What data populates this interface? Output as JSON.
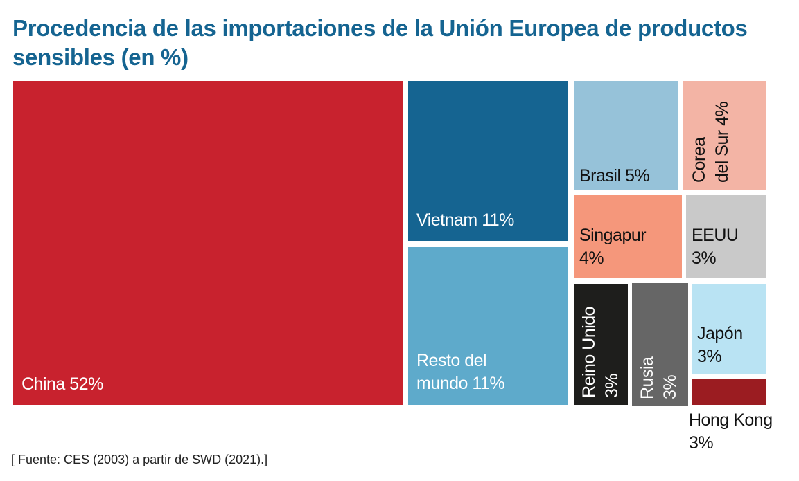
{
  "chart_data": {
    "type": "treemap",
    "title": "Procedencia de las importaciones de la Unión Europea de productos sensibles (en %)",
    "unit": "%",
    "items": [
      {
        "name": "China",
        "value": 52,
        "color": "#c8222e",
        "label_lines": [
          "China 52%"
        ],
        "text": "light"
      },
      {
        "name": "Vietnam",
        "value": 11,
        "color": "#156491",
        "label_lines": [
          "Vietnam 11%"
        ],
        "text": "light"
      },
      {
        "name": "Resto del mundo",
        "value": 11,
        "color": "#5eaacb",
        "label_lines": [
          "Resto del",
          "mundo 11%"
        ],
        "text": "light"
      },
      {
        "name": "Brasil",
        "value": 5,
        "color": "#96c2d9",
        "label_lines": [
          "Brasil 5%"
        ],
        "text": "dark"
      },
      {
        "name": "Corea del Sur",
        "value": 4,
        "color": "#f3b4a5",
        "label_lines": [
          "Corea",
          "del Sur 4%"
        ],
        "text": "dark"
      },
      {
        "name": "Singapur",
        "value": 4,
        "color": "#f5977b",
        "label_lines": [
          "Singapur",
          "4%"
        ],
        "text": "dark"
      },
      {
        "name": "EEUU",
        "value": 3,
        "color": "#c9c9c9",
        "label_lines": [
          "EEUU",
          "3%"
        ],
        "text": "dark"
      },
      {
        "name": "Reino Unido",
        "value": 3,
        "color": "#1e1e1c",
        "label_lines": [
          "Reino Unido",
          "3%"
        ],
        "text": "light"
      },
      {
        "name": "Rusia",
        "value": 3,
        "color": "#666666",
        "label_lines": [
          "Rusia",
          "3%"
        ],
        "text": "light"
      },
      {
        "name": "Japón",
        "value": 3,
        "color": "#b9e3f3",
        "label_lines": [
          "Japón",
          "3%"
        ],
        "text": "dark"
      },
      {
        "name": "Hong Kong",
        "value": 3,
        "color": "#9b1c21",
        "label_lines": [
          "Hong Kong",
          "3%"
        ],
        "text": "dark"
      }
    ],
    "source": "[ Fuente: CES (2003) a partir de SWD (2021).]"
  }
}
